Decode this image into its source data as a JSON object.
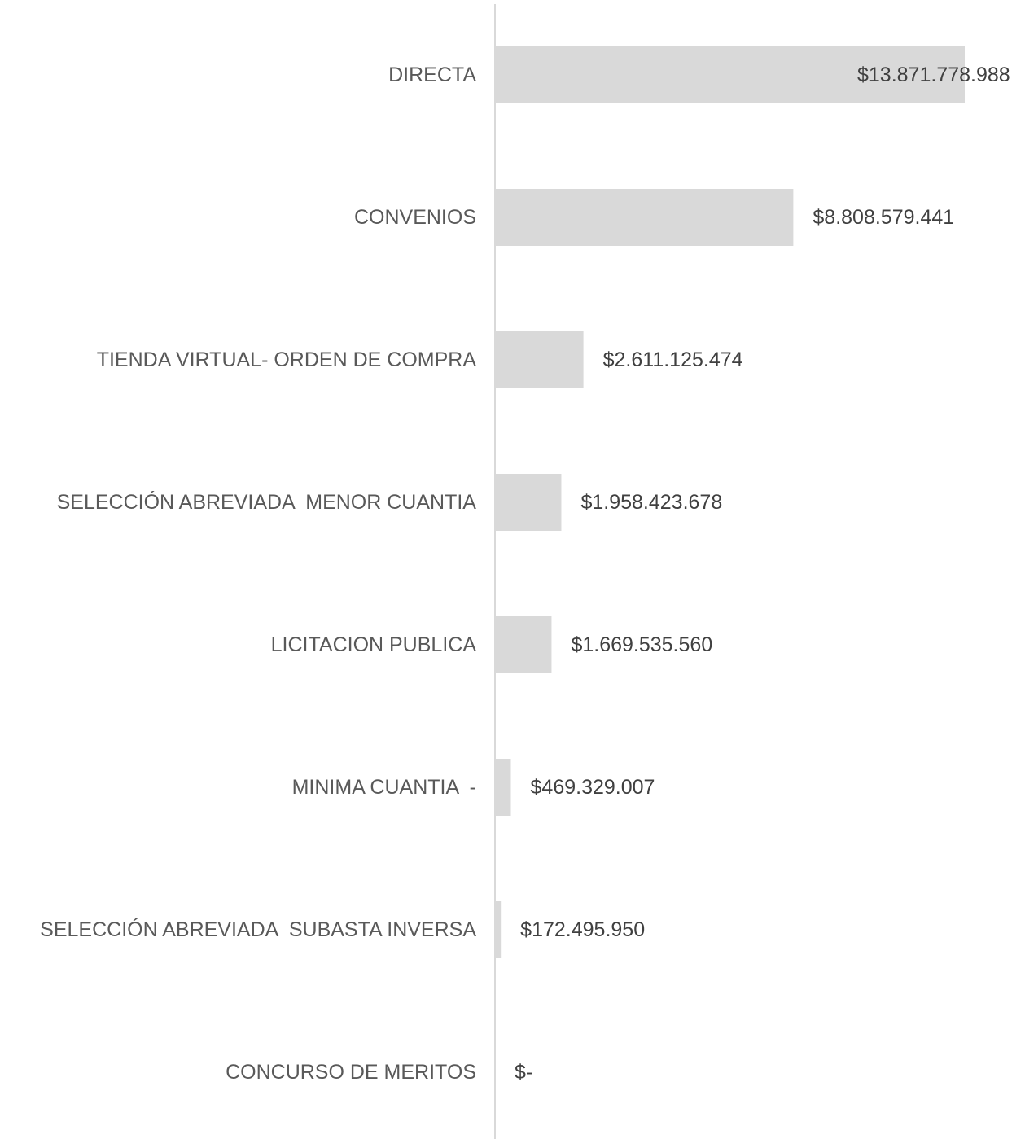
{
  "chart_data": {
    "type": "bar",
    "orientation": "horizontal",
    "categories": [
      "DIRECTA",
      "CONVENIOS",
      "TIENDA VIRTUAL- ORDEN DE COMPRA",
      "SELECCIÓN ABREVIADA  MENOR CUANTIA",
      "LICITACION PUBLICA",
      "MINIMA CUANTIA  -",
      "SELECCIÓN ABREVIADA  SUBASTA INVERSA",
      "CONCURSO DE MERITOS"
    ],
    "values": [
      13871778988,
      8808579441,
      2611125474,
      1958423678,
      1669535560,
      469329007,
      172495950,
      0
    ],
    "data_labels": [
      "$13.871.778.988",
      "$8.808.579.441",
      "$2.611.125.474",
      "$1.958.423.678",
      "$1.669.535.560",
      "$469.329.007",
      "$172.495.950",
      "$-"
    ],
    "title": "",
    "xlabel": "",
    "ylabel": "",
    "xlim": [
      0,
      13871778988
    ],
    "grid": false,
    "legend": "none",
    "colors": {
      "bar": "#d9d9d9",
      "axis": "#d9d9d9",
      "category_text": "#595959",
      "value_text": "#404040"
    }
  }
}
